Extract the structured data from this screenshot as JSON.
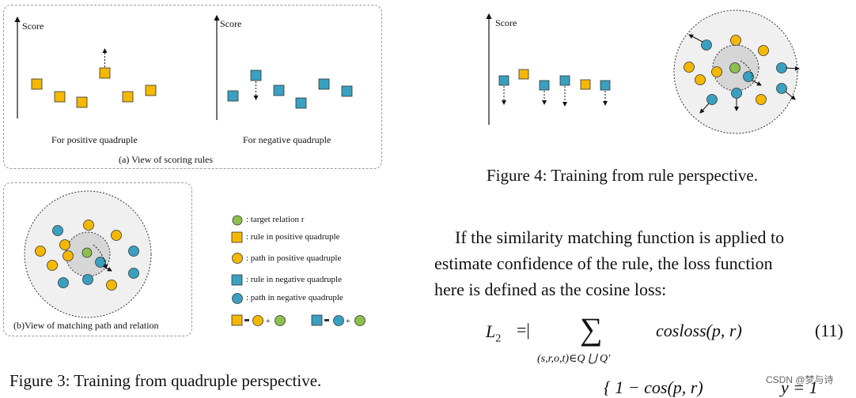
{
  "figure3": {
    "panel_a": {
      "left_axis_label": "Score",
      "right_axis_label": "Score",
      "left_caption": "For positive quadruple",
      "right_caption": "For negative quadruple",
      "panel_caption": "(a) View of scoring rules"
    },
    "panel_b_caption": "(b)View of matching path and relation",
    "legend": [
      {
        "marker": "green-circle",
        "text": ": target relation r"
      },
      {
        "marker": "yellow-square",
        "text": ": rule in positive quadruple"
      },
      {
        "marker": "yellow-circle",
        "text": ": path in positive quadruple"
      },
      {
        "marker": "blue-square",
        "text": ": rule in negative quadruple"
      },
      {
        "marker": "blue-circle",
        "text": ": path in negative quadruple"
      }
    ],
    "caption": "Figure 3: Training from quadruple perspective."
  },
  "figure4": {
    "axis_label": "Score",
    "caption": "Figure 4: Training from rule perspective."
  },
  "paragraph": [
    "If the similarity matching function is applied to",
    "estimate confidence of the rule, the loss function",
    "here is defined as the cosine loss:"
  ],
  "equation": {
    "lhs": "L",
    "lhs_sub": "2",
    "equals": "=|",
    "sum": "∑",
    "sum_sub": "(s,r,o,t)∈Q ⋃ Q′",
    "term": "cosloss(p, r)",
    "number": "(11)",
    "next_line_left": "{ 1 − cos(p, r)",
    "next_line_right": "y = 1"
  },
  "colors": {
    "yellow": "#f5b800",
    "blue": "#3aa0c0",
    "green": "#8cbf4f",
    "ring": "#f0f0f0",
    "core": "#d6d6d6"
  },
  "watermark": "CSDN @梦与诗"
}
